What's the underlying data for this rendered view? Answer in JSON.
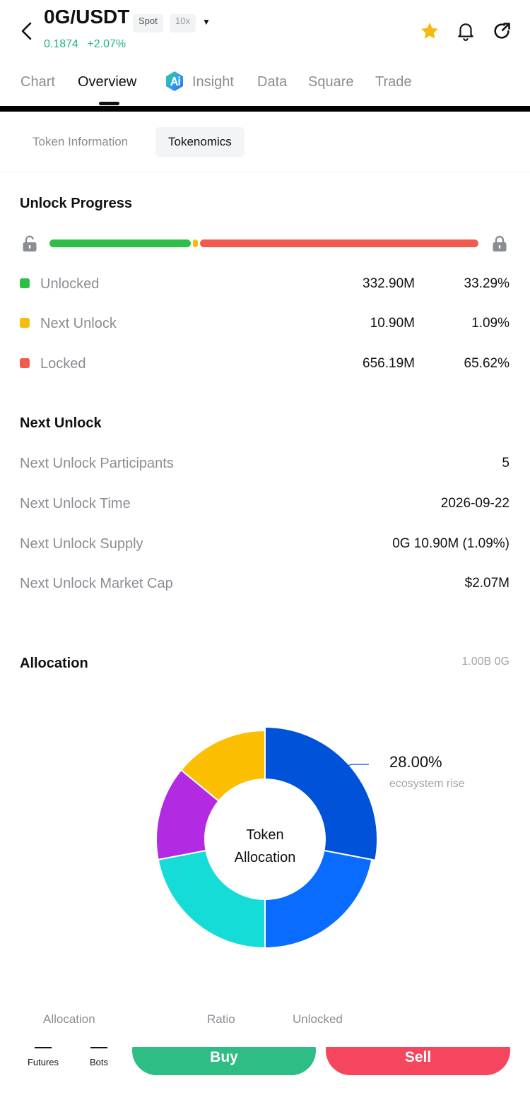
{
  "header": {
    "pair": "0G/USDT",
    "market_type": "Spot",
    "leverage": "10x",
    "price": "0.1874",
    "change": "+2.07%"
  },
  "tabs": [
    {
      "label": "Chart"
    },
    {
      "label": "Overview"
    },
    {
      "label": "Insight"
    },
    {
      "label": "Data"
    },
    {
      "label": "Square"
    },
    {
      "label": "Trade"
    }
  ],
  "subtabs": [
    {
      "label": "Token Information"
    },
    {
      "label": "Tokenomics"
    }
  ],
  "unlock_progress": {
    "title": "Unlock Progress",
    "fractions": {
      "unlocked": 0.3329,
      "next": 0.0109,
      "locked": 0.6562
    },
    "items": [
      {
        "label": "Unlocked",
        "amount": "332.90M",
        "pct": "33.29%",
        "color": "#2fbf47"
      },
      {
        "label": "Next Unlock",
        "amount": "10.90M",
        "pct": "1.09%",
        "color": "#f7bd0e"
      },
      {
        "label": "Locked",
        "amount": "656.19M",
        "pct": "65.62%",
        "color": "#f15b4e"
      }
    ]
  },
  "next_unlock": {
    "title": "Next Unlock",
    "rows": [
      {
        "label": "Next Unlock Participants",
        "value": "5"
      },
      {
        "label": "Next Unlock Time",
        "value": "2026-09-22"
      },
      {
        "label": "Next Unlock Supply",
        "value": "0G 10.90M (1.09%)"
      },
      {
        "label": "Next Unlock Market Cap",
        "value": "$2.07M"
      }
    ]
  },
  "allocation": {
    "title": "Allocation",
    "total": "1.00B 0G",
    "center_line1": "Token",
    "center_line2": "Allocation",
    "callout_value": "28.00%",
    "callout_label": "ecosystem rise",
    "slices": [
      {
        "fraction": 0.28,
        "color": "#0052d9"
      },
      {
        "fraction": 0.22,
        "color": "#0a6cff"
      },
      {
        "fraction": 0.22,
        "color": "#16dcd8"
      },
      {
        "fraction": 0.14,
        "color": "#b32ae3"
      },
      {
        "fraction": 0.14,
        "color": "#fcbe00"
      }
    ],
    "table_headers": [
      "Allocation",
      "Ratio",
      "Unlocked"
    ]
  },
  "bottom_bar": {
    "nav": [
      "Futures",
      "Bots"
    ],
    "buy": "Buy",
    "sell": "Sell"
  },
  "colors": {
    "positive": "#1fb57b",
    "buy": "#2ebd85",
    "sell": "#f6465d",
    "star": "#f8b90f"
  }
}
